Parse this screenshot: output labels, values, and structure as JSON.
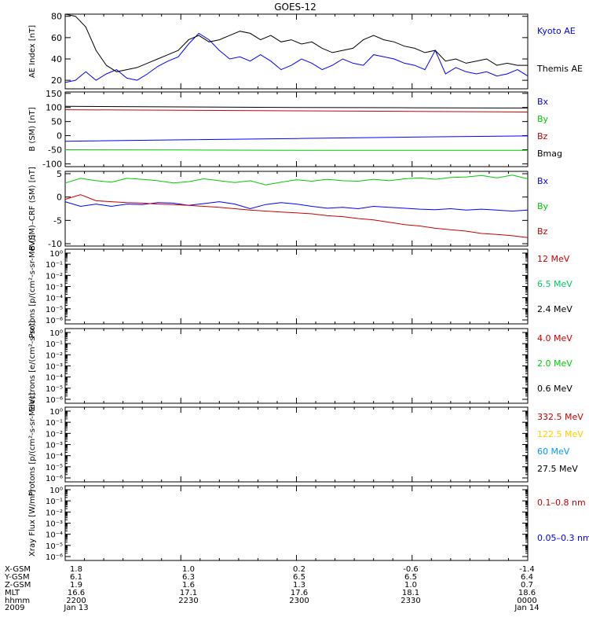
{
  "title": "GOES-12",
  "chart_data": [
    {
      "type": "line",
      "ylabel": "AE Index [nT]",
      "yticks": [
        20,
        40,
        60,
        80
      ],
      "ylim": [
        12,
        82
      ],
      "log": false,
      "xlim": [
        0,
        180
      ],
      "series": [
        {
          "name": "Kyoto AE",
          "color": "#0000ff",
          "x": [
            0,
            4,
            8,
            12,
            16,
            20,
            24,
            28,
            32,
            36,
            40,
            44,
            48,
            52,
            56,
            60,
            64,
            68,
            72,
            76,
            80,
            84,
            88,
            92,
            96,
            100,
            104,
            108,
            112,
            116,
            120,
            124,
            128,
            132,
            136,
            140,
            144,
            148,
            152,
            156,
            160,
            164,
            168,
            172,
            176,
            180
          ],
          "y": [
            18,
            20,
            28,
            20,
            26,
            30,
            22,
            20,
            26,
            33,
            38,
            42,
            54,
            64,
            58,
            48,
            40,
            42,
            38,
            44,
            38,
            30,
            34,
            40,
            36,
            30,
            34,
            40,
            36,
            34,
            44,
            42,
            40,
            36,
            34,
            30,
            48,
            26,
            32,
            28,
            26,
            28,
            24,
            26,
            30,
            24
          ]
        },
        {
          "name": "Themis AE",
          "color": "#000000",
          "x": [
            0,
            4,
            8,
            12,
            16,
            20,
            24,
            28,
            32,
            36,
            40,
            44,
            48,
            52,
            56,
            60,
            64,
            68,
            72,
            76,
            80,
            84,
            88,
            92,
            96,
            100,
            104,
            108,
            112,
            116,
            120,
            124,
            128,
            132,
            136,
            140,
            144,
            148,
            152,
            156,
            160,
            164,
            168,
            172,
            176,
            180
          ],
          "y": [
            82,
            80,
            70,
            48,
            34,
            28,
            30,
            32,
            36,
            40,
            44,
            48,
            58,
            62,
            56,
            58,
            62,
            66,
            64,
            58,
            62,
            56,
            58,
            54,
            56,
            50,
            46,
            48,
            50,
            58,
            62,
            58,
            56,
            52,
            50,
            46,
            48,
            38,
            40,
            36,
            38,
            40,
            34,
            36,
            34,
            34
          ]
        }
      ]
    },
    {
      "type": "line",
      "ylabel": "B (SM) [nT]",
      "yticks": [
        150,
        100,
        50,
        0,
        -50,
        -100
      ],
      "ylim": [
        -110,
        155
      ],
      "log": false,
      "xlim": [
        0,
        180
      ],
      "series": [
        {
          "name": "Bx",
          "color": "#0000ff",
          "x": [
            0,
            45,
            90,
            135,
            180
          ],
          "y": [
            -20,
            -15,
            -10,
            -5,
            -1
          ]
        },
        {
          "name": "By",
          "color": "#00cc00",
          "x": [
            0,
            45,
            90,
            135,
            180
          ],
          "y": [
            -50,
            -51,
            -52,
            -52,
            -52
          ]
        },
        {
          "name": "Bz",
          "color": "#cc0000",
          "x": [
            0,
            45,
            90,
            135,
            180
          ],
          "y": [
            92,
            90,
            88,
            86,
            84
          ]
        },
        {
          "name": "Bmag",
          "color": "#000000",
          "x": [
            0,
            45,
            90,
            135,
            180
          ],
          "y": [
            104,
            102,
            100,
            99,
            98
          ]
        }
      ]
    },
    {
      "type": "line",
      "ylabel": "B (SM)–CRF (SM) [nT]",
      "yticks": [
        5,
        0,
        -5,
        -10
      ],
      "ylim": [
        -10.5,
        5.5
      ],
      "log": false,
      "xlim": [
        0,
        180
      ],
      "series": [
        {
          "name": "Bx",
          "color": "#0000ff",
          "x": [
            0,
            6,
            12,
            18,
            24,
            30,
            36,
            42,
            48,
            54,
            60,
            66,
            72,
            78,
            84,
            90,
            96,
            102,
            108,
            114,
            120,
            126,
            132,
            138,
            144,
            150,
            156,
            162,
            168,
            174,
            180
          ],
          "y": [
            -1,
            -2,
            -1.5,
            -2,
            -1.5,
            -1.6,
            -1.2,
            -1.3,
            -1.8,
            -1.4,
            -1,
            -1.5,
            -2.5,
            -1.6,
            -1.2,
            -1.5,
            -2,
            -2.4,
            -2.2,
            -2.5,
            -2,
            -2.2,
            -2.4,
            -2.6,
            -2.7,
            -2.5,
            -2.8,
            -2.6,
            -2.8,
            -3,
            -2.8
          ]
        },
        {
          "name": "By",
          "color": "#00cc00",
          "x": [
            0,
            6,
            12,
            18,
            24,
            30,
            36,
            42,
            48,
            54,
            60,
            66,
            72,
            78,
            84,
            90,
            96,
            102,
            108,
            114,
            120,
            126,
            132,
            138,
            144,
            150,
            156,
            162,
            168,
            174,
            180
          ],
          "y": [
            3,
            4,
            3.5,
            3.2,
            4,
            3.8,
            3.5,
            3,
            3.3,
            3.9,
            3.5,
            3.1,
            3.5,
            2.6,
            3.2,
            3.7,
            3.4,
            3.8,
            3.5,
            3.4,
            3.8,
            3.5,
            3.9,
            4.1,
            3.8,
            4.2,
            4.3,
            4.6,
            4.1,
            4.7,
            3.9
          ]
        },
        {
          "name": "Bz",
          "color": "#cc0000",
          "x": [
            0,
            6,
            12,
            18,
            24,
            30,
            36,
            42,
            48,
            54,
            60,
            66,
            72,
            78,
            84,
            90,
            96,
            102,
            108,
            114,
            120,
            126,
            132,
            138,
            144,
            150,
            156,
            162,
            168,
            174,
            180
          ],
          "y": [
            -0.5,
            0.5,
            -0.8,
            -1,
            -1.2,
            -1.3,
            -1.5,
            -1.6,
            -1.8,
            -2,
            -2.2,
            -2.5,
            -2.8,
            -3,
            -3.2,
            -3.4,
            -3.6,
            -4,
            -4.2,
            -4.6,
            -4.9,
            -5.4,
            -5.9,
            -6.2,
            -6.7,
            -7,
            -7.3,
            -7.8,
            -8,
            -8.3,
            -8.7
          ]
        }
      ]
    },
    {
      "type": "line",
      "ylabel": "Protons [p/(cm²-s-sr-MeV)]",
      "log": true,
      "ylim": [
        1e-06,
        1
      ],
      "ytick_labels": [
        "10⁰",
        "10⁻¹",
        "10⁻²",
        "10⁻³",
        "10⁻⁴",
        "10⁻⁵",
        "10⁻⁶"
      ],
      "series": [
        {
          "name": "12 MeV",
          "color": "#cc0000",
          "x": [],
          "y": []
        },
        {
          "name": "6.5 MeV",
          "color": "#00cc66",
          "x": [],
          "y": []
        },
        {
          "name": "2.4 MeV",
          "color": "#000000",
          "x": [],
          "y": []
        }
      ]
    },
    {
      "type": "line",
      "ylabel": "Electrons [e/(cm²-s-sr)]",
      "log": true,
      "ylim": [
        1e-06,
        1
      ],
      "ytick_labels": [
        "10⁰",
        "10⁻¹",
        "10⁻²",
        "10⁻³",
        "10⁻⁴",
        "10⁻⁵",
        "10⁻⁶"
      ],
      "series": [
        {
          "name": "4.0 MeV",
          "color": "#cc0000",
          "x": [],
          "y": []
        },
        {
          "name": "2.0 MeV",
          "color": "#00cc00",
          "x": [],
          "y": []
        },
        {
          "name": "0.6 MeV",
          "color": "#000000",
          "x": [],
          "y": []
        }
      ]
    },
    {
      "type": "line",
      "ylabel": "Protons [p/(cm²-s-sr-MeV)]",
      "log": true,
      "ylim": [
        1e-06,
        1
      ],
      "ytick_labels": [
        "10⁰",
        "10⁻¹",
        "10⁻²",
        "10⁻³",
        "10⁻⁴",
        "10⁻⁵",
        "10⁻⁶"
      ],
      "series": [
        {
          "name": "332.5 MeV",
          "color": "#cc0000",
          "x": [],
          "y": []
        },
        {
          "name": "122.5 MeV",
          "color": "#ffcc00",
          "x": [],
          "y": []
        },
        {
          "name": "60 MeV",
          "color": "#0099ff",
          "x": [],
          "y": []
        },
        {
          "name": "27.5 MeV",
          "color": "#000000",
          "x": [],
          "y": []
        }
      ]
    },
    {
      "type": "line",
      "ylabel": "Xray Flux [W/m²]",
      "log": true,
      "ylim": [
        1e-06,
        1
      ],
      "ytick_labels": [
        "10⁰",
        "10⁻¹",
        "10⁻²",
        "10⁻³",
        "10⁻⁴",
        "10⁻⁵",
        "10⁻⁶"
      ],
      "series": [
        {
          "name": "0.1–0.8 nm",
          "color": "#cc0000",
          "x": [],
          "y": []
        },
        {
          "name": "0.05–0.3 nm",
          "color": "#0000ff",
          "x": [],
          "y": []
        }
      ]
    }
  ],
  "x_axis": {
    "labels": [
      "X-GSM",
      "Y-GSM",
      "Z-GSM",
      "MLT",
      "hhmm",
      "2009"
    ],
    "columns": [
      [
        "1.8",
        "6.1",
        "1.9",
        "16.6",
        "2200",
        "Jan 13"
      ],
      [
        "1.0",
        "6.3",
        "1.6",
        "17.1",
        "2230",
        ""
      ],
      [
        "0.2",
        "6.5",
        "1.3",
        "17.6",
        "2300",
        ""
      ],
      [
        "-0.6",
        "6.5",
        "1.0",
        "18.1",
        "2330",
        ""
      ],
      [
        "-1.4",
        "6.4",
        "0.7",
        "18.6",
        "0000",
        "Jan 14"
      ]
    ]
  }
}
